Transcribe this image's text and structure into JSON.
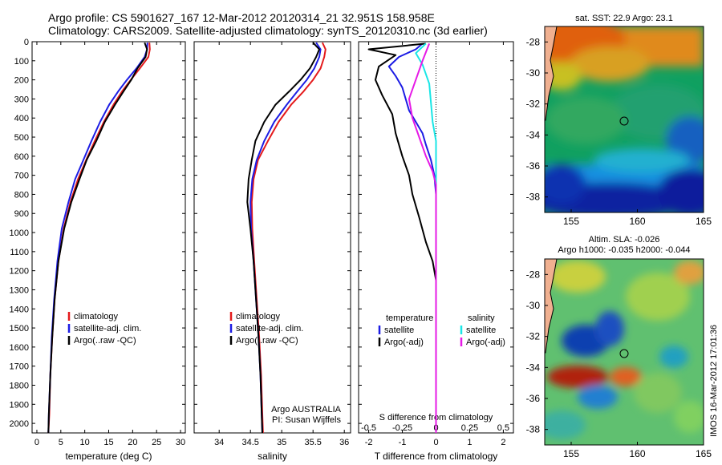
{
  "header": {
    "line1": "Argo profile: CS 5901627_167 12-Mar-2012 20120314_21 32.951S 158.958E",
    "line2": "Climatology: CARS2009. Satellite-adjusted climatology: synTS_20120310.nc (3d earlier)"
  },
  "side_stamp": "IMOS 16-Mar-2012 17:01:36",
  "depth_ticks": [
    0,
    100,
    200,
    300,
    400,
    500,
    600,
    700,
    800,
    900,
    1000,
    1100,
    1200,
    1300,
    1400,
    1500,
    1600,
    1700,
    1800,
    1900,
    2000
  ],
  "colors": {
    "climatology": "#e41a1c",
    "satellite": "#1c1ce4",
    "argo": "#000000",
    "sal_satellite": "#19e6e6",
    "sal_argo": "#e619e6"
  },
  "chart_data": [
    {
      "type": "line",
      "id": "temperature",
      "xlabel": "temperature (deg C)",
      "ylabel": "",
      "xlim": [
        -1,
        31
      ],
      "ylim": [
        2050,
        0
      ],
      "xticks": [
        0,
        5,
        10,
        15,
        20,
        25,
        30
      ],
      "legend": [
        "climatology",
        "satellite-adj. clim.",
        "Argo(..raw -QC)"
      ],
      "series": [
        {
          "name": "climatology",
          "color": "#e41a1c",
          "x": [
            23.5,
            23.6,
            23.3,
            21.5,
            19.6,
            17.8,
            16.0,
            14.0,
            12.1,
            10.3,
            8.6,
            7.0,
            5.6,
            4.5,
            3.7,
            3.2,
            2.8,
            2.6,
            2.4
          ],
          "y": [
            5,
            40,
            80,
            140,
            200,
            260,
            330,
            420,
            520,
            620,
            720,
            840,
            980,
            1150,
            1350,
            1550,
            1750,
            1950,
            2050
          ]
        },
        {
          "name": "satellite-adj. clim.",
          "color": "#1c1ce4",
          "x": [
            23.1,
            23.0,
            22.5,
            20.8,
            18.8,
            17.0,
            15.1,
            13.2,
            11.4,
            9.7,
            8.0,
            6.6,
            5.2,
            4.3,
            3.6,
            3.1,
            2.8,
            2.5,
            2.4
          ],
          "y": [
            5,
            40,
            80,
            140,
            200,
            260,
            330,
            420,
            520,
            620,
            720,
            840,
            980,
            1150,
            1350,
            1550,
            1750,
            1950,
            2050
          ]
        },
        {
          "name": "Argo(..raw -QC)",
          "color": "#000000",
          "x": [
            22.5,
            23.0,
            22.7,
            21.0,
            19.7,
            18.1,
            16.3,
            14.2,
            12.4,
            10.4,
            8.9,
            7.2,
            5.7,
            4.5,
            3.7,
            3.2,
            2.8,
            2.5,
            2.4
          ],
          "y": [
            5,
            40,
            80,
            140,
            200,
            260,
            330,
            420,
            520,
            620,
            720,
            840,
            980,
            1150,
            1350,
            1550,
            1750,
            1950,
            2050
          ]
        }
      ]
    },
    {
      "type": "line",
      "id": "salinity",
      "xlabel": "salinity",
      "xlim": [
        33.6,
        36.1
      ],
      "ylim": [
        2050,
        0
      ],
      "xticks": [
        34,
        34.5,
        35,
        35.5,
        36
      ],
      "legend": [
        "climatology",
        "satellite-adj. clim.",
        "Argo(..raw -QC)"
      ],
      "annotation": [
        "Argo AUSTRALIA",
        "PI: Susan Wijffels"
      ],
      "series": [
        {
          "name": "climatology",
          "color": "#e41a1c",
          "x": [
            35.65,
            35.7,
            35.68,
            35.62,
            35.5,
            35.35,
            35.15,
            34.95,
            34.78,
            34.62,
            34.55,
            34.52,
            34.53,
            34.56,
            34.6,
            34.64,
            34.67,
            34.69,
            34.7
          ],
          "y": [
            5,
            40,
            80,
            140,
            200,
            260,
            330,
            420,
            520,
            620,
            720,
            840,
            980,
            1150,
            1350,
            1550,
            1750,
            1950,
            2050
          ]
        },
        {
          "name": "satellite-adj. clim.",
          "color": "#1c1ce4",
          "x": [
            35.55,
            35.62,
            35.6,
            35.52,
            35.4,
            35.25,
            35.08,
            34.88,
            34.72,
            34.6,
            34.53,
            34.5,
            34.51,
            34.55,
            34.59,
            34.63,
            34.66,
            34.68,
            34.69
          ],
          "y": [
            5,
            40,
            80,
            140,
            200,
            260,
            330,
            420,
            520,
            620,
            720,
            840,
            980,
            1150,
            1350,
            1550,
            1750,
            1950,
            2050
          ]
        },
        {
          "name": "Argo(..raw -QC)",
          "color": "#000000",
          "x": [
            35.5,
            35.6,
            35.55,
            35.45,
            35.3,
            35.12,
            34.9,
            34.72,
            34.58,
            34.52,
            34.47,
            34.45,
            34.5,
            34.55,
            34.59,
            34.63,
            34.66,
            34.68,
            34.69
          ],
          "y": [
            5,
            40,
            80,
            140,
            200,
            260,
            330,
            420,
            520,
            620,
            720,
            840,
            980,
            1150,
            1350,
            1550,
            1750,
            1950,
            2050
          ]
        }
      ]
    },
    {
      "type": "line",
      "id": "differences",
      "xlabel": "T difference from climatology",
      "xlabel_top": "S difference from climatology",
      "xlim": [
        -2.3,
        2.3
      ],
      "ylim": [
        2050,
        0
      ],
      "xticks": [
        -2,
        -1,
        0,
        1,
        2
      ],
      "top_ticks": [
        "-0.5",
        "-0.25",
        "0",
        "0.25",
        "0.5"
      ],
      "top_tick_values": [
        -2,
        -1,
        0,
        1,
        2
      ],
      "legend_left_title": "temperature",
      "legend_right_title": "salinity",
      "legend": [
        "satellite",
        "Argo(-adj)",
        "satellite",
        "Argo(-adj)"
      ],
      "series": [
        {
          "name": "temperature satellite",
          "color": "#1c1ce4",
          "x": [
            -0.4,
            -0.6,
            -1.1,
            -1.4,
            -1.2,
            -1.0,
            -0.9,
            -0.8,
            -0.6,
            -0.4,
            -0.3,
            -0.15,
            -0.05,
            0,
            0
          ],
          "y": [
            10,
            40,
            80,
            130,
            180,
            240,
            300,
            360,
            420,
            480,
            540,
            620,
            700,
            800,
            2050
          ]
        },
        {
          "name": "temperature Argo(-adj)",
          "color": "#000000",
          "x": [
            -0.3,
            -2.0,
            -1.2,
            -1.7,
            -1.8,
            -1.6,
            -1.3,
            -1.2,
            -1.0,
            -0.8,
            -0.7,
            -0.5,
            -0.3,
            -0.1,
            0,
            0
          ],
          "y": [
            10,
            40,
            70,
            130,
            200,
            280,
            380,
            480,
            600,
            700,
            800,
            920,
            1050,
            1150,
            1250,
            2050
          ]
        },
        {
          "name": "salinity satellite",
          "color": "#19e6e6",
          "x": [
            -0.3,
            -0.6,
            -0.4,
            -0.2,
            -0.15,
            -0.1,
            0,
            0
          ],
          "y": [
            10,
            60,
            120,
            220,
            320,
            420,
            520,
            2050
          ]
        },
        {
          "name": "salinity Argo(-adj)",
          "color": "#e619e6",
          "x": [
            -0.2,
            -0.4,
            -0.6,
            -0.8,
            -0.7,
            -0.5,
            -0.3,
            -0.1,
            0,
            0
          ],
          "y": [
            10,
            100,
            200,
            300,
            400,
            500,
            600,
            680,
            750,
            2050
          ]
        }
      ]
    },
    {
      "type": "heatmap",
      "id": "sst_map",
      "title": "sat. SST: 22.9 Argo: 23.1",
      "xticks": [
        155,
        160,
        165
      ],
      "yticks": [
        -28,
        -30,
        -32,
        -34,
        -36,
        -38
      ],
      "xlim": [
        153,
        165
      ],
      "ylim": [
        -39,
        -27
      ],
      "marker": {
        "lon": 158.958,
        "lat": -32.951
      }
    },
    {
      "type": "heatmap",
      "id": "sla_map",
      "title_line1": "Altim. SLA: -0.026",
      "title_line2": "Argo h1000: -0.035 h2000: -0.044",
      "xticks": [
        155,
        160,
        165
      ],
      "yticks": [
        -28,
        -30,
        -32,
        -34,
        -36,
        -38
      ],
      "xlim": [
        153,
        165
      ],
      "ylim": [
        -39,
        -27
      ],
      "marker": {
        "lon": 158.958,
        "lat": -32.951
      }
    }
  ]
}
